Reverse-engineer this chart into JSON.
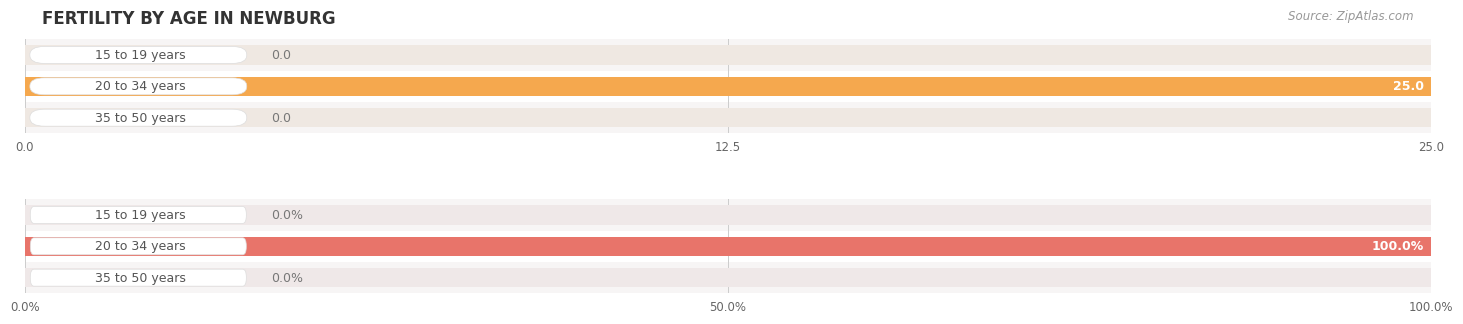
{
  "title": "FERTILITY BY AGE IN NEWBURG",
  "source": "Source: ZipAtlas.com",
  "top_chart": {
    "categories": [
      "15 to 19 years",
      "20 to 34 years",
      "35 to 50 years"
    ],
    "values": [
      0.0,
      25.0,
      0.0
    ],
    "max_val": 25.0,
    "xticks": [
      0.0,
      12.5,
      25.0
    ],
    "xtick_labels": [
      "0.0",
      "12.5",
      "25.0"
    ],
    "bar_color": "#F5A84E",
    "bar_bg_color": "#EFE8E2",
    "label_pill_bg": "#FDDBB8",
    "value_color_inside": "#FFFFFF",
    "value_color_outside": "#888888"
  },
  "bottom_chart": {
    "categories": [
      "15 to 19 years",
      "20 to 34 years",
      "35 to 50 years"
    ],
    "values": [
      0.0,
      100.0,
      0.0
    ],
    "max_val": 100.0,
    "xticks": [
      0.0,
      50.0,
      100.0
    ],
    "xtick_labels": [
      "0.0%",
      "50.0%",
      "100.0%"
    ],
    "bar_color": "#E8746A",
    "bar_bg_color": "#EFE8E8",
    "label_pill_bg": "#F5C0BB",
    "value_color_inside": "#FFFFFF",
    "value_color_outside": "#888888"
  },
  "bg_color": "#FFFFFF",
  "row_bg_even": "#F7F5F5",
  "row_bg_odd": "#FFFFFF",
  "title_fontsize": 12,
  "label_fontsize": 9,
  "tick_fontsize": 8.5,
  "source_fontsize": 8.5,
  "label_text_color": "#555555"
}
